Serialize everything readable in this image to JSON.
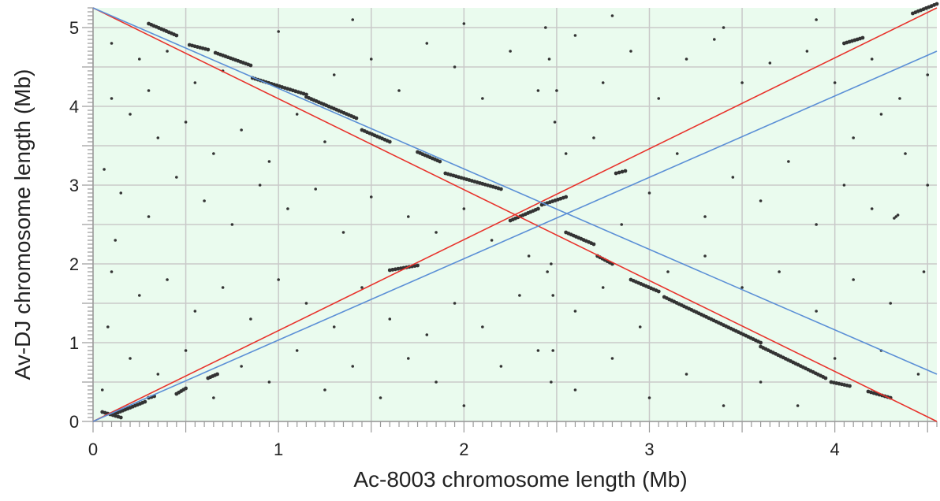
{
  "chart_data": {
    "type": "scatter",
    "title": "",
    "xlabel": "Ac-8003   chromosome length (Mb)",
    "ylabel": "Av-DJ   chromosome length (Mb)",
    "xlim": [
      0,
      4.55
    ],
    "ylim": [
      0,
      5.25
    ],
    "xticks": [
      0,
      1,
      2,
      3,
      4
    ],
    "yticks": [
      0,
      1,
      2,
      3,
      4,
      5
    ],
    "grid": true,
    "colors": {
      "plot_background": "#eafbee",
      "grid": "#c9c9c9",
      "points": "#333333",
      "red_line": "#e8322b",
      "blue_line": "#5b8fd6"
    },
    "reference_lines": [
      {
        "color": "#e8322b",
        "x": [
          0,
          4.55
        ],
        "y": [
          5.25,
          0
        ]
      },
      {
        "color": "#e8322b",
        "x": [
          0,
          4.55
        ],
        "y": [
          0,
          5.25
        ]
      },
      {
        "color": "#5b8fd6",
        "x": [
          0,
          4.55
        ],
        "y": [
          5.25,
          0.6
        ]
      },
      {
        "color": "#5b8fd6",
        "x": [
          0,
          4.55
        ],
        "y": [
          0,
          4.7
        ]
      }
    ],
    "alignment_segments": [
      {
        "x": [
          0.05,
          0.15
        ],
        "y": [
          0.12,
          0.05
        ]
      },
      {
        "x": [
          0.12,
          0.28
        ],
        "y": [
          0.1,
          0.25
        ]
      },
      {
        "x": [
          0.3,
          0.33
        ],
        "y": [
          0.3,
          0.32
        ]
      },
      {
        "x": [
          0.45,
          0.5
        ],
        "y": [
          0.35,
          0.42
        ]
      },
      {
        "x": [
          0.62,
          0.67
        ],
        "y": [
          0.55,
          0.6
        ]
      },
      {
        "x": [
          0.3,
          0.45
        ],
        "y": [
          5.05,
          4.9
        ]
      },
      {
        "x": [
          0.52,
          0.62
        ],
        "y": [
          4.78,
          4.72
        ]
      },
      {
        "x": [
          0.66,
          0.85
        ],
        "y": [
          4.68,
          4.52
        ]
      },
      {
        "x": [
          0.86,
          1.15
        ],
        "y": [
          4.36,
          4.15
        ]
      },
      {
        "x": [
          1.15,
          1.42
        ],
        "y": [
          4.12,
          3.85
        ]
      },
      {
        "x": [
          1.45,
          1.6
        ],
        "y": [
          3.7,
          3.55
        ]
      },
      {
        "x": [
          1.6,
          1.75
        ],
        "y": [
          1.92,
          1.98
        ]
      },
      {
        "x": [
          1.75,
          1.87
        ],
        "y": [
          3.42,
          3.3
        ]
      },
      {
        "x": [
          1.9,
          2.2
        ],
        "y": [
          3.15,
          2.95
        ]
      },
      {
        "x": [
          2.25,
          2.4
        ],
        "y": [
          2.55,
          2.7
        ]
      },
      {
        "x": [
          2.42,
          2.55
        ],
        "y": [
          2.75,
          2.85
        ]
      },
      {
        "x": [
          2.55,
          2.7
        ],
        "y": [
          2.4,
          2.25
        ]
      },
      {
        "x": [
          2.72,
          2.8
        ],
        "y": [
          2.1,
          2.0
        ]
      },
      {
        "x": [
          2.82,
          2.87
        ],
        "y": [
          3.15,
          3.18
        ]
      },
      {
        "x": [
          2.9,
          3.05
        ],
        "y": [
          1.8,
          1.65
        ]
      },
      {
        "x": [
          3.08,
          3.6
        ],
        "y": [
          1.58,
          1.0
        ]
      },
      {
        "x": [
          3.6,
          3.95
        ],
        "y": [
          0.95,
          0.55
        ]
      },
      {
        "x": [
          3.98,
          4.08
        ],
        "y": [
          0.5,
          0.45
        ]
      },
      {
        "x": [
          4.18,
          4.3
        ],
        "y": [
          0.38,
          0.3
        ]
      },
      {
        "x": [
          4.05,
          4.15
        ],
        "y": [
          4.8,
          4.87
        ]
      },
      {
        "x": [
          4.42,
          4.55
        ],
        "y": [
          5.18,
          5.3
        ]
      }
    ],
    "scatter_points": [
      [
        0.1,
        4.8
      ],
      [
        0.25,
        4.6
      ],
      [
        0.4,
        4.7
      ],
      [
        0.55,
        4.3
      ],
      [
        0.7,
        4.45
      ],
      [
        0.2,
        3.9
      ],
      [
        0.35,
        3.6
      ],
      [
        0.5,
        3.8
      ],
      [
        0.65,
        3.4
      ],
      [
        0.8,
        3.7
      ],
      [
        0.95,
        3.3
      ],
      [
        1.1,
        3.9
      ],
      [
        1.25,
        3.55
      ],
      [
        1.3,
        4.4
      ],
      [
        1.5,
        4.6
      ],
      [
        1.65,
        4.2
      ],
      [
        1.8,
        4.8
      ],
      [
        1.95,
        4.5
      ],
      [
        2.1,
        4.1
      ],
      [
        2.25,
        4.7
      ],
      [
        2.4,
        4.2
      ],
      [
        2.6,
        4.9
      ],
      [
        2.75,
        4.3
      ],
      [
        2.9,
        4.7
      ],
      [
        3.05,
        4.1
      ],
      [
        3.2,
        4.6
      ],
      [
        3.35,
        4.85
      ],
      [
        3.5,
        4.3
      ],
      [
        3.65,
        4.55
      ],
      [
        3.85,
        4.7
      ],
      [
        4.0,
        4.3
      ],
      [
        4.2,
        4.6
      ],
      [
        4.35,
        4.1
      ],
      [
        4.5,
        4.4
      ],
      [
        0.15,
        2.9
      ],
      [
        0.3,
        2.6
      ],
      [
        0.45,
        3.1
      ],
      [
        0.6,
        2.8
      ],
      [
        0.75,
        2.5
      ],
      [
        0.9,
        3.0
      ],
      [
        1.05,
        2.7
      ],
      [
        1.2,
        2.95
      ],
      [
        1.35,
        2.4
      ],
      [
        1.5,
        2.85
      ],
      [
        1.7,
        2.6
      ],
      [
        1.85,
        2.4
      ],
      [
        2.0,
        2.7
      ],
      [
        2.15,
        2.3
      ],
      [
        2.35,
        2.1
      ],
      [
        2.55,
        3.4
      ],
      [
        2.7,
        3.6
      ],
      [
        2.85,
        2.5
      ],
      [
        3.0,
        2.9
      ],
      [
        3.15,
        3.4
      ],
      [
        3.3,
        2.6
      ],
      [
        3.45,
        3.1
      ],
      [
        3.6,
        2.8
      ],
      [
        3.75,
        3.3
      ],
      [
        3.9,
        2.5
      ],
      [
        4.05,
        3.0
      ],
      [
        4.2,
        2.7
      ],
      [
        4.38,
        3.4
      ],
      [
        4.5,
        3.0
      ],
      [
        0.1,
        1.9
      ],
      [
        0.25,
        1.6
      ],
      [
        0.4,
        1.8
      ],
      [
        0.55,
        1.4
      ],
      [
        0.7,
        1.7
      ],
      [
        0.85,
        1.3
      ],
      [
        1.0,
        1.8
      ],
      [
        1.15,
        1.5
      ],
      [
        1.3,
        1.2
      ],
      [
        1.45,
        1.7
      ],
      [
        1.6,
        1.3
      ],
      [
        1.8,
        1.1
      ],
      [
        1.95,
        1.5
      ],
      [
        2.1,
        1.2
      ],
      [
        2.3,
        1.6
      ],
      [
        2.45,
        1.9
      ],
      [
        2.6,
        1.4
      ],
      [
        2.75,
        1.7
      ],
      [
        2.95,
        1.2
      ],
      [
        3.1,
        1.9
      ],
      [
        3.3,
        2.1
      ],
      [
        3.5,
        1.7
      ],
      [
        3.7,
        1.9
      ],
      [
        3.9,
        1.4
      ],
      [
        4.1,
        1.8
      ],
      [
        4.3,
        1.5
      ],
      [
        4.48,
        1.9
      ],
      [
        0.2,
        0.8
      ],
      [
        0.35,
        0.6
      ],
      [
        0.5,
        0.9
      ],
      [
        0.65,
        0.3
      ],
      [
        0.8,
        0.7
      ],
      [
        0.95,
        0.5
      ],
      [
        1.1,
        0.9
      ],
      [
        1.25,
        0.4
      ],
      [
        1.4,
        0.7
      ],
      [
        1.55,
        0.3
      ],
      [
        1.7,
        0.8
      ],
      [
        1.85,
        0.5
      ],
      [
        2.0,
        0.2
      ],
      [
        2.2,
        0.7
      ],
      [
        2.4,
        0.9
      ],
      [
        2.6,
        0.4
      ],
      [
        2.8,
        0.8
      ],
      [
        3.0,
        0.3
      ],
      [
        3.2,
        0.6
      ],
      [
        3.4,
        0.2
      ],
      [
        3.6,
        0.5
      ],
      [
        3.8,
        0.2
      ],
      [
        4.0,
        0.8
      ],
      [
        4.25,
        0.9
      ],
      [
        4.45,
        0.6
      ],
      [
        2.48,
        1.6
      ],
      [
        2.47,
        2.0
      ],
      [
        2.49,
        3.8
      ],
      [
        2.5,
        4.2
      ],
      [
        2.46,
        4.6
      ],
      [
        2.44,
        5.0
      ],
      [
        2.48,
        0.9
      ],
      [
        2.47,
        0.5
      ],
      [
        0.3,
        4.2
      ],
      [
        1.0,
        4.95
      ],
      [
        1.4,
        5.1
      ],
      [
        2.0,
        5.05
      ],
      [
        2.8,
        5.15
      ],
      [
        3.4,
        5.0
      ],
      [
        3.9,
        5.1
      ],
      [
        4.33,
        2.6
      ],
      [
        4.32,
        2.58
      ],
      [
        4.34,
        2.62
      ],
      [
        4.1,
        3.6
      ],
      [
        4.25,
        3.9
      ],
      [
        0.05,
        0.4
      ],
      [
        0.08,
        1.2
      ],
      [
        0.12,
        2.3
      ],
      [
        0.06,
        3.2
      ],
      [
        0.1,
        4.1
      ]
    ]
  }
}
